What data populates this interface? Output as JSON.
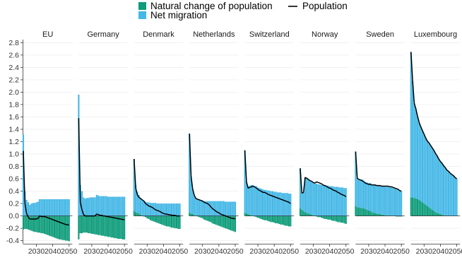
{
  "chart_data": {
    "type": "bar",
    "legend": {
      "placement": "top-center",
      "entries": [
        {
          "key": "natural",
          "label": "Natural change of population",
          "color": "#0E9C7A",
          "kind": "bar"
        },
        {
          "key": "migration",
          "label": "Net migration",
          "color": "#45B8E6",
          "kind": "bar"
        },
        {
          "key": "population",
          "label": "Population",
          "color": "#000000",
          "kind": "line"
        }
      ]
    },
    "ylim": [
      -0.45,
      2.85
    ],
    "yticks": [
      -0.4,
      -0.2,
      0.0,
      0.2,
      0.4,
      0.6,
      0.8,
      1.0,
      1.2,
      1.4,
      1.6,
      1.8,
      2.0,
      2.2,
      2.4,
      2.6,
      2.8
    ],
    "ytick_labels": [
      "-0.4",
      "-0.2",
      "0.0",
      "0.2",
      "0.4",
      "0.6",
      "0.8",
      "1.0",
      "1.2",
      "1.4",
      "1.6",
      "1.8",
      "2.0",
      "2.2",
      "2.4",
      "2.6",
      "2.8"
    ],
    "xlim": [
      2022,
      2052
    ],
    "xticks": [
      2030,
      2040,
      2050
    ],
    "xtick_labels": [
      "2030",
      "2040",
      "2050"
    ],
    "grid": true,
    "facets": [
      {
        "name": "EU",
        "years": [
          2022,
          2023,
          2024,
          2025,
          2026,
          2027,
          2028,
          2029,
          2030,
          2031,
          2032,
          2033,
          2034,
          2035,
          2036,
          2037,
          2038,
          2039,
          2040,
          2041,
          2042,
          2043,
          2044,
          2045,
          2046,
          2047,
          2048,
          2049,
          2050
        ],
        "natural": [
          -0.22,
          -0.21,
          -0.21,
          -0.22,
          -0.23,
          -0.24,
          -0.25,
          -0.26,
          -0.26,
          -0.27,
          -0.27,
          -0.28,
          -0.28,
          -0.29,
          -0.3,
          -0.31,
          -0.32,
          -0.33,
          -0.34,
          -0.35,
          -0.36,
          -0.37,
          -0.38,
          -0.38,
          -0.39,
          -0.39,
          -0.4,
          -0.4,
          -0.41
        ],
        "migration": [
          1.32,
          0.4,
          0.26,
          0.22,
          0.18,
          0.2,
          0.21,
          0.21,
          0.22,
          0.23,
          0.27,
          0.27,
          0.27,
          0.27,
          0.27,
          0.27,
          0.27,
          0.27,
          0.27,
          0.27,
          0.27,
          0.27,
          0.27,
          0.27,
          0.27,
          0.27,
          0.27,
          0.27,
          0.27
        ],
        "population": [
          1.05,
          0.2,
          0.04,
          -0.02,
          -0.05,
          -0.05,
          -0.05,
          -0.05,
          -0.05,
          -0.04,
          0.0,
          -0.01,
          -0.01,
          -0.01,
          -0.02,
          -0.03,
          -0.04,
          -0.05,
          -0.06,
          -0.07,
          -0.08,
          -0.09,
          -0.1,
          -0.11,
          -0.12,
          -0.13,
          -0.14,
          -0.14,
          -0.15
        ]
      },
      {
        "name": "Germany",
        "years": [
          2022,
          2023,
          2024,
          2025,
          2026,
          2027,
          2028,
          2029,
          2030,
          2031,
          2032,
          2033,
          2034,
          2035,
          2036,
          2037,
          2038,
          2039,
          2040,
          2041,
          2042,
          2043,
          2044,
          2045,
          2046,
          2047,
          2048,
          2049,
          2050
        ],
        "natural": [
          -0.38,
          -0.28,
          -0.28,
          -0.27,
          -0.27,
          -0.27,
          -0.28,
          -0.28,
          -0.29,
          -0.29,
          -0.3,
          -0.3,
          -0.31,
          -0.31,
          -0.32,
          -0.32,
          -0.33,
          -0.33,
          -0.34,
          -0.34,
          -0.35,
          -0.35,
          -0.36,
          -0.36,
          -0.37,
          -0.37,
          -0.37,
          -0.38,
          -0.38
        ],
        "migration": [
          1.96,
          0.5,
          0.4,
          0.3,
          0.28,
          0.29,
          0.29,
          0.3,
          0.3,
          0.3,
          0.3,
          0.34,
          0.33,
          0.32,
          0.32,
          0.32,
          0.32,
          0.32,
          0.31,
          0.31,
          0.31,
          0.31,
          0.31,
          0.31,
          0.31,
          0.31,
          0.31,
          0.31,
          0.31
        ],
        "population": [
          1.58,
          0.22,
          0.1,
          0.02,
          0.0,
          0.0,
          0.0,
          0.0,
          0.0,
          0.0,
          0.0,
          0.03,
          0.02,
          0.01,
          0.01,
          0.0,
          0.0,
          -0.01,
          -0.01,
          -0.02,
          -0.02,
          -0.03,
          -0.03,
          -0.04,
          -0.04,
          -0.05,
          -0.05,
          -0.06,
          -0.06
        ]
      },
      {
        "name": "Denmark",
        "years": [
          2022,
          2023,
          2024,
          2025,
          2026,
          2027,
          2028,
          2029,
          2030,
          2031,
          2032,
          2033,
          2034,
          2035,
          2036,
          2037,
          2038,
          2039,
          2040,
          2041,
          2042,
          2043,
          2044,
          2045,
          2046,
          2047,
          2048,
          2049,
          2050
        ],
        "natural": [
          0.08,
          0.06,
          0.05,
          0.04,
          0.02,
          0.01,
          -0.01,
          -0.02,
          -0.04,
          -0.05,
          -0.07,
          -0.08,
          -0.09,
          -0.1,
          -0.11,
          -0.12,
          -0.13,
          -0.14,
          -0.15,
          -0.16,
          -0.17,
          -0.17,
          -0.18,
          -0.19,
          -0.19,
          -0.2,
          -0.2,
          -0.21,
          -0.21
        ],
        "migration": [
          0.84,
          0.44,
          0.34,
          0.3,
          0.27,
          0.25,
          0.24,
          0.23,
          0.22,
          0.22,
          0.21,
          0.21,
          0.21,
          0.21,
          0.2,
          0.2,
          0.2,
          0.2,
          0.2,
          0.2,
          0.2,
          0.2,
          0.2,
          0.2,
          0.2,
          0.2,
          0.2,
          0.2,
          0.2
        ],
        "population": [
          0.92,
          0.45,
          0.34,
          0.3,
          0.28,
          0.26,
          0.24,
          0.2,
          0.18,
          0.16,
          0.15,
          0.14,
          0.12,
          0.1,
          0.09,
          0.08,
          0.07,
          0.05,
          0.04,
          0.03,
          0.03,
          0.02,
          0.02,
          0.01,
          0.01,
          0.01,
          0.0,
          0.0,
          0.0
        ]
      },
      {
        "name": "Netherlands",
        "years": [
          2022,
          2023,
          2024,
          2025,
          2026,
          2027,
          2028,
          2029,
          2030,
          2031,
          2032,
          2033,
          2034,
          2035,
          2036,
          2037,
          2038,
          2039,
          2040,
          2041,
          2042,
          2043,
          2044,
          2045,
          2046,
          2047,
          2048,
          2049,
          2050
        ],
        "natural": [
          0.05,
          0.04,
          0.03,
          0.01,
          0.0,
          -0.01,
          -0.02,
          -0.03,
          -0.04,
          -0.06,
          -0.07,
          -0.08,
          -0.09,
          -0.1,
          -0.12,
          -0.13,
          -0.14,
          -0.15,
          -0.16,
          -0.17,
          -0.18,
          -0.19,
          -0.2,
          -0.21,
          -0.22,
          -0.23,
          -0.24,
          -0.25,
          -0.26
        ],
        "migration": [
          1.28,
          0.6,
          0.4,
          0.32,
          0.28,
          0.27,
          0.26,
          0.25,
          0.25,
          0.24,
          0.24,
          0.24,
          0.24,
          0.24,
          0.24,
          0.24,
          0.24,
          0.24,
          0.24,
          0.24,
          0.24,
          0.24,
          0.23,
          0.23,
          0.23,
          0.23,
          0.23,
          0.23,
          0.23
        ],
        "population": [
          1.33,
          0.64,
          0.43,
          0.33,
          0.28,
          0.27,
          0.26,
          0.25,
          0.24,
          0.22,
          0.21,
          0.2,
          0.18,
          0.15,
          0.12,
          0.1,
          0.08,
          0.06,
          0.05,
          0.03,
          0.02,
          0.01,
          0.0,
          -0.01,
          -0.02,
          -0.03,
          -0.04,
          -0.04,
          -0.05
        ]
      },
      {
        "name": "Switzerland",
        "years": [
          2022,
          2023,
          2024,
          2025,
          2026,
          2027,
          2028,
          2029,
          2030,
          2031,
          2032,
          2033,
          2034,
          2035,
          2036,
          2037,
          2038,
          2039,
          2040,
          2041,
          2042,
          2043,
          2044,
          2045,
          2046,
          2047,
          2048,
          2049,
          2050
        ],
        "natural": [
          0.05,
          0.04,
          0.03,
          0.02,
          0.01,
          0.0,
          -0.01,
          -0.02,
          -0.03,
          -0.04,
          -0.05,
          -0.06,
          -0.07,
          -0.07,
          -0.08,
          -0.09,
          -0.1,
          -0.1,
          -0.11,
          -0.12,
          -0.12,
          -0.13,
          -0.14,
          -0.14,
          -0.15,
          -0.16,
          -0.16,
          -0.17,
          -0.17
        ],
        "migration": [
          1.01,
          0.52,
          0.45,
          0.47,
          0.49,
          0.5,
          0.48,
          0.48,
          0.46,
          0.45,
          0.44,
          0.43,
          0.42,
          0.42,
          0.41,
          0.41,
          0.4,
          0.4,
          0.39,
          0.39,
          0.38,
          0.38,
          0.38,
          0.37,
          0.37,
          0.37,
          0.37,
          0.36,
          0.36
        ],
        "population": [
          1.06,
          0.55,
          0.45,
          0.46,
          0.47,
          0.48,
          0.47,
          0.45,
          0.43,
          0.41,
          0.4,
          0.38,
          0.38,
          0.37,
          0.35,
          0.34,
          0.33,
          0.32,
          0.31,
          0.3,
          0.29,
          0.28,
          0.27,
          0.26,
          0.25,
          0.24,
          0.23,
          0.22,
          0.2
        ]
      },
      {
        "name": "Norway",
        "years": [
          2022,
          2023,
          2024,
          2025,
          2026,
          2027,
          2028,
          2029,
          2030,
          2031,
          2032,
          2033,
          2034,
          2035,
          2036,
          2037,
          2038,
          2039,
          2040,
          2041,
          2042,
          2043,
          2044,
          2045,
          2046,
          2047,
          2048,
          2049,
          2050
        ],
        "natural": [
          0.12,
          0.1,
          0.08,
          0.06,
          0.05,
          0.04,
          0.03,
          0.02,
          0.01,
          0.0,
          -0.01,
          -0.02,
          -0.02,
          -0.03,
          -0.04,
          -0.05,
          -0.05,
          -0.06,
          -0.06,
          -0.07,
          -0.08,
          -0.08,
          -0.09,
          -0.1,
          -0.1,
          -0.11,
          -0.11,
          -0.12,
          -0.13
        ],
        "migration": [
          0.65,
          0.27,
          0.3,
          0.56,
          0.56,
          0.55,
          0.54,
          0.53,
          0.53,
          0.52,
          0.52,
          0.51,
          0.51,
          0.5,
          0.5,
          0.5,
          0.49,
          0.49,
          0.48,
          0.48,
          0.48,
          0.47,
          0.47,
          0.47,
          0.46,
          0.46,
          0.46,
          0.45,
          0.45
        ],
        "population": [
          0.77,
          0.37,
          0.38,
          0.62,
          0.61,
          0.59,
          0.57,
          0.56,
          0.54,
          0.53,
          0.55,
          0.54,
          0.53,
          0.52,
          0.5,
          0.49,
          0.48,
          0.46,
          0.45,
          0.44,
          0.42,
          0.41,
          0.4,
          0.38,
          0.37,
          0.35,
          0.34,
          0.33,
          0.31
        ]
      },
      {
        "name": "Sweden",
        "years": [
          2022,
          2023,
          2024,
          2025,
          2026,
          2027,
          2028,
          2029,
          2030,
          2031,
          2032,
          2033,
          2034,
          2035,
          2036,
          2037,
          2038,
          2039,
          2040,
          2041,
          2042,
          2043,
          2044,
          2045,
          2046,
          2047,
          2048,
          2049,
          2050
        ],
        "natural": [
          0.16,
          0.14,
          0.14,
          0.13,
          0.13,
          0.12,
          0.11,
          0.1,
          0.09,
          0.08,
          0.06,
          0.05,
          0.05,
          0.04,
          0.03,
          0.03,
          0.02,
          0.02,
          0.01,
          0.01,
          0.01,
          0.0,
          0.0,
          0.0,
          0.0,
          -0.01,
          -0.01,
          -0.01,
          -0.01
        ],
        "migration": [
          0.88,
          0.47,
          0.44,
          0.45,
          0.46,
          0.45,
          0.44,
          0.44,
          0.44,
          0.45,
          0.45,
          0.45,
          0.45,
          0.45,
          0.46,
          0.46,
          0.46,
          0.46,
          0.46,
          0.46,
          0.46,
          0.46,
          0.46,
          0.45,
          0.44,
          0.43,
          0.42,
          0.41,
          0.4
        ],
        "population": [
          1.04,
          0.61,
          0.59,
          0.58,
          0.57,
          0.55,
          0.53,
          0.52,
          0.51,
          0.51,
          0.5,
          0.5,
          0.5,
          0.49,
          0.49,
          0.49,
          0.48,
          0.48,
          0.48,
          0.48,
          0.48,
          0.47,
          0.47,
          0.46,
          0.45,
          0.44,
          0.43,
          0.41,
          0.4
        ]
      },
      {
        "name": "Luxembourg",
        "years": [
          2022,
          2023,
          2024,
          2025,
          2026,
          2027,
          2028,
          2029,
          2030,
          2031,
          2032,
          2033,
          2034,
          2035,
          2036,
          2037,
          2038,
          2039,
          2040,
          2041,
          2042,
          2043,
          2044,
          2045,
          2046,
          2047,
          2048,
          2049,
          2050
        ],
        "natural": [
          0.3,
          0.3,
          0.29,
          0.28,
          0.27,
          0.26,
          0.24,
          0.22,
          0.2,
          0.18,
          0.16,
          0.14,
          0.12,
          0.1,
          0.08,
          0.06,
          0.05,
          0.04,
          0.03,
          0.02,
          0.01,
          0.01,
          0.0,
          0.0,
          0.0,
          0.0,
          0.0,
          0.0,
          0.0
        ],
        "migration": [
          2.35,
          1.88,
          1.53,
          1.45,
          1.34,
          1.25,
          1.2,
          1.16,
          1.12,
          1.08,
          1.05,
          1.04,
          1.02,
          1.0,
          0.98,
          0.95,
          0.92,
          0.88,
          0.85,
          0.83,
          0.8,
          0.77,
          0.74,
          0.72,
          0.69,
          0.67,
          0.65,
          0.62,
          0.6
        ],
        "population": [
          2.65,
          2.18,
          1.82,
          1.73,
          1.61,
          1.51,
          1.44,
          1.38,
          1.32,
          1.26,
          1.21,
          1.18,
          1.14,
          1.1,
          1.06,
          1.01,
          0.97,
          0.92,
          0.88,
          0.85,
          0.81,
          0.78,
          0.74,
          0.72,
          0.69,
          0.67,
          0.65,
          0.62,
          0.6
        ]
      }
    ]
  }
}
